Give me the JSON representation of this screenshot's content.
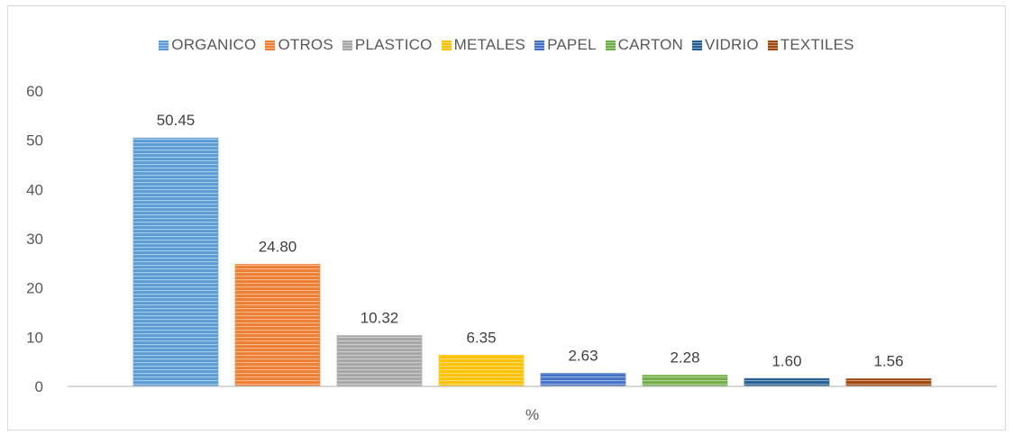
{
  "chart_data": {
    "type": "bar",
    "title": "",
    "xlabel": "%",
    "ylabel": "",
    "ylim": [
      0,
      60
    ],
    "yticks": [
      "0",
      "10",
      "20",
      "30",
      "40",
      "50",
      "60"
    ],
    "grid": false,
    "legend_position": "top",
    "series": [
      {
        "name": "ORGANICO",
        "value": 50.45,
        "label": "50.45",
        "color": "#5b9bd5"
      },
      {
        "name": "OTROS",
        "value": 24.8,
        "label": "24.80",
        "color": "#ed7d31"
      },
      {
        "name": "PLASTICO",
        "value": 10.32,
        "label": "10.32",
        "color": "#a5a5a5"
      },
      {
        "name": "METALES",
        "value": 6.35,
        "label": "6.35",
        "color": "#ffc000"
      },
      {
        "name": "PAPEL",
        "value": 2.63,
        "label": "2.63",
        "color": "#4472c4"
      },
      {
        "name": "CARTON",
        "value": 2.28,
        "label": "2.28",
        "color": "#70ad47"
      },
      {
        "name": "VIDRIO",
        "value": 1.6,
        "label": "1.60",
        "color": "#255e91"
      },
      {
        "name": "TEXTILES",
        "value": 1.56,
        "label": "1.56",
        "color": "#9e480e"
      }
    ]
  }
}
